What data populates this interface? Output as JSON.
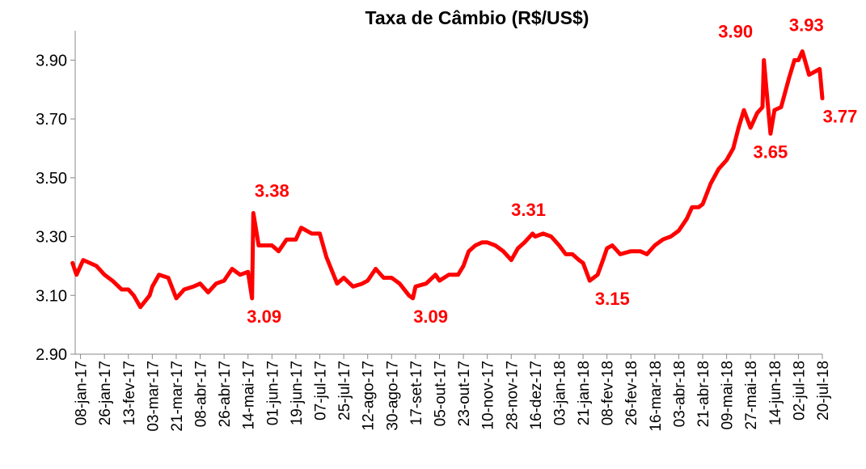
{
  "chart_data": {
    "type": "line",
    "title": "Taxa de Câmbio (R$/US$)",
    "color": "#ff0000",
    "x": [
      "2017-01-02",
      "2017-01-05",
      "2017-01-10",
      "2017-01-20",
      "2017-01-26",
      "2017-02-01",
      "2017-02-08",
      "2017-02-13",
      "2017-02-17",
      "2017-02-22",
      "2017-03-01",
      "2017-03-03",
      "2017-03-08",
      "2017-03-15",
      "2017-03-21",
      "2017-03-27",
      "2017-04-03",
      "2017-04-08",
      "2017-04-14",
      "2017-04-20",
      "2017-04-26",
      "2017-05-02",
      "2017-05-08",
      "2017-05-14",
      "2017-05-17",
      "2017-05-18",
      "2017-05-22",
      "2017-06-01",
      "2017-06-06",
      "2017-06-12",
      "2017-06-19",
      "2017-06-23",
      "2017-07-01",
      "2017-07-07",
      "2017-07-12",
      "2017-07-20",
      "2017-07-25",
      "2017-08-01",
      "2017-08-08",
      "2017-08-12",
      "2017-08-18",
      "2017-08-24",
      "2017-08-30",
      "2017-09-05",
      "2017-09-12",
      "2017-09-15",
      "2017-09-17",
      "2017-09-25",
      "2017-10-02",
      "2017-10-05",
      "2017-10-12",
      "2017-10-19",
      "2017-10-23",
      "2017-10-27",
      "2017-11-01",
      "2017-11-06",
      "2017-11-10",
      "2017-11-16",
      "2017-11-22",
      "2017-11-28",
      "2017-12-03",
      "2017-12-08",
      "2017-12-14",
      "2017-12-16",
      "2017-12-22",
      "2017-12-28",
      "2018-01-03",
      "2018-01-08",
      "2018-01-13",
      "2018-01-18",
      "2018-01-21",
      "2018-01-26",
      "2018-02-01",
      "2018-02-05",
      "2018-02-08",
      "2018-02-12",
      "2018-02-18",
      "2018-02-26",
      "2018-03-05",
      "2018-03-10",
      "2018-03-16",
      "2018-03-22",
      "2018-03-28",
      "2018-04-03",
      "2018-04-09",
      "2018-04-13",
      "2018-04-18",
      "2018-04-21",
      "2018-04-27",
      "2018-05-03",
      "2018-05-09",
      "2018-05-14",
      "2018-05-18",
      "2018-05-22",
      "2018-05-27",
      "2018-06-01",
      "2018-06-05",
      "2018-06-06",
      "2018-06-08",
      "2018-06-11",
      "2018-06-14",
      "2018-06-19",
      "2018-06-25",
      "2018-06-29",
      "2018-07-02",
      "2018-07-05",
      "2018-07-10",
      "2018-07-14",
      "2018-07-18",
      "2018-07-20"
    ],
    "values": [
      3.21,
      3.17,
      3.22,
      3.2,
      3.17,
      3.15,
      3.12,
      3.12,
      3.1,
      3.06,
      3.1,
      3.13,
      3.17,
      3.16,
      3.09,
      3.12,
      3.13,
      3.14,
      3.11,
      3.14,
      3.15,
      3.19,
      3.17,
      3.18,
      3.09,
      3.38,
      3.27,
      3.27,
      3.25,
      3.29,
      3.29,
      3.33,
      3.31,
      3.31,
      3.23,
      3.14,
      3.16,
      3.13,
      3.14,
      3.15,
      3.19,
      3.16,
      3.16,
      3.14,
      3.1,
      3.09,
      3.13,
      3.14,
      3.17,
      3.15,
      3.17,
      3.17,
      3.2,
      3.25,
      3.27,
      3.28,
      3.28,
      3.27,
      3.25,
      3.22,
      3.26,
      3.28,
      3.31,
      3.3,
      3.31,
      3.3,
      3.27,
      3.24,
      3.24,
      3.22,
      3.21,
      3.15,
      3.17,
      3.22,
      3.26,
      3.27,
      3.24,
      3.25,
      3.25,
      3.24,
      3.27,
      3.29,
      3.3,
      3.32,
      3.36,
      3.4,
      3.4,
      3.41,
      3.48,
      3.53,
      3.56,
      3.6,
      3.67,
      3.73,
      3.67,
      3.72,
      3.74,
      3.9,
      3.8,
      3.65,
      3.73,
      3.74,
      3.84,
      3.9,
      3.9,
      3.93,
      3.85,
      3.86,
      3.87,
      3.77
    ],
    "xlim": [
      "2017-01-04",
      "2018-07-20"
    ],
    "xticks": [
      {
        "value": "2017-01-08",
        "label": "08-jan-17"
      },
      {
        "value": "2017-01-26",
        "label": "26-jan-17"
      },
      {
        "value": "2017-02-13",
        "label": "13-fev-17"
      },
      {
        "value": "2017-03-03",
        "label": "03-mar-17"
      },
      {
        "value": "2017-03-21",
        "label": "21-mar-17"
      },
      {
        "value": "2017-04-08",
        "label": "08-abr-17"
      },
      {
        "value": "2017-04-26",
        "label": "26-abr-17"
      },
      {
        "value": "2017-05-14",
        "label": "14-mai-17"
      },
      {
        "value": "2017-06-01",
        "label": "01-jun-17"
      },
      {
        "value": "2017-06-19",
        "label": "19-jun-17"
      },
      {
        "value": "2017-07-07",
        "label": "07-jul-17"
      },
      {
        "value": "2017-07-25",
        "label": "25-jul-17"
      },
      {
        "value": "2017-08-12",
        "label": "12-ago-17"
      },
      {
        "value": "2017-08-30",
        "label": "30-ago-17"
      },
      {
        "value": "2017-09-17",
        "label": "17-set-17"
      },
      {
        "value": "2017-10-05",
        "label": "05-out-17"
      },
      {
        "value": "2017-10-23",
        "label": "23-out-17"
      },
      {
        "value": "2017-11-10",
        "label": "10-nov-17"
      },
      {
        "value": "2017-11-28",
        "label": "28-nov-17"
      },
      {
        "value": "2017-12-16",
        "label": "16-dez-17"
      },
      {
        "value": "2018-01-03",
        "label": "03-jan-18"
      },
      {
        "value": "2018-01-21",
        "label": "21-jan-18"
      },
      {
        "value": "2018-02-08",
        "label": "08-fev-18"
      },
      {
        "value": "2018-02-26",
        "label": "26-fev-18"
      },
      {
        "value": "2018-03-16",
        "label": "16-mar-18"
      },
      {
        "value": "2018-04-03",
        "label": "03-abr-18"
      },
      {
        "value": "2018-04-21",
        "label": "21-abr-18"
      },
      {
        "value": "2018-05-09",
        "label": "09-mai-18"
      },
      {
        "value": "2018-05-27",
        "label": "27-mai-18"
      },
      {
        "value": "2018-06-14",
        "label": "14-jun-18"
      },
      {
        "value": "2018-07-02",
        "label": "02-jul-18"
      },
      {
        "value": "2018-07-20",
        "label": "20-jul-18"
      }
    ],
    "ylim": [
      2.9,
      4.0
    ],
    "yticks": [
      {
        "value": 2.9,
        "label": "2.90"
      },
      {
        "value": 3.1,
        "label": "3.10"
      },
      {
        "value": 3.3,
        "label": "3.30"
      },
      {
        "value": 3.5,
        "label": "3.50"
      },
      {
        "value": 3.7,
        "label": "3.70"
      },
      {
        "value": 3.9,
        "label": "3.90"
      }
    ],
    "annotations": [
      {
        "x": "2017-05-18",
        "value": 3.38,
        "label": "3.38"
      },
      {
        "x": "2017-05-17",
        "value": 3.09,
        "label": "3.09"
      },
      {
        "x": "2017-09-15",
        "value": 3.09,
        "label": "3.09"
      },
      {
        "x": "2017-12-14",
        "value": 3.31,
        "label": "3.31"
      },
      {
        "x": "2018-01-26",
        "value": 3.15,
        "label": "3.15"
      },
      {
        "x": "2018-06-06",
        "value": 3.9,
        "label": "3.90"
      },
      {
        "x": "2018-06-11",
        "value": 3.65,
        "label": "3.65"
      },
      {
        "x": "2018-07-05",
        "value": 3.93,
        "label": "3.93"
      },
      {
        "x": "2018-07-20",
        "value": 3.77,
        "label": "3.77"
      }
    ]
  }
}
